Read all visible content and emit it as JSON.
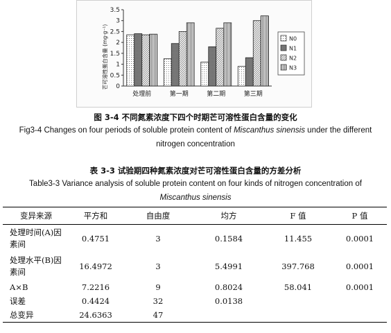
{
  "chart_data": {
    "type": "bar",
    "categories": [
      "处理前",
      "第一期",
      "第二期",
      "第三期"
    ],
    "series": [
      {
        "name": "N0",
        "values": [
          2.35,
          1.25,
          1.1,
          0.9
        ],
        "pattern": "dots"
      },
      {
        "name": "N1",
        "values": [
          2.4,
          1.95,
          1.8,
          1.3
        ],
        "pattern": "dark"
      },
      {
        "name": "N2",
        "values": [
          2.35,
          2.5,
          2.65,
          3.0
        ],
        "pattern": "hatch"
      },
      {
        "name": "N3",
        "values": [
          2.38,
          2.9,
          2.9,
          3.22
        ],
        "pattern": "vlines"
      }
    ],
    "ylabel": "芒可溶性蛋白含量 (mg·g⁻¹)",
    "yticks": [
      "0",
      "0.5",
      "1",
      "1.5",
      "2",
      "2.5",
      "3",
      "3.5"
    ],
    "ylim": [
      0,
      3.5
    ],
    "legend_position": "right",
    "grid": false
  },
  "figure_caption_cn": "图 3-4 不同氮素浓度下四个时期芒可溶性蛋白含量的变化",
  "figure_caption_en": {
    "line1_before": "Fig3-4 Changes on four periods of soluble protein content of ",
    "line1_species": "Miscanthus sinensis",
    "line1_after": " under the different",
    "line2": "nitrogen concentration"
  },
  "table_caption_cn": "表 3-3 试验期四种氮素浓度对芒可溶性蛋白含量的方差分析",
  "table_caption_en": {
    "line1": "Table3-3 Variance analysis of soluble protein content on four kinds of nitrogen concentration of",
    "line2": "Miscanthus sinensis"
  },
  "table": {
    "headers": [
      "变异来源",
      "平方和",
      "自由度",
      "均方",
      "F 值",
      "P 值"
    ],
    "rows": [
      {
        "source": "处理时间(A)因素间",
        "ss": "0.4751",
        "df": "3",
        "ms": "0.1584",
        "f": "11.455",
        "p": "0.0001"
      },
      {
        "source": "处理水平(B)因素间",
        "ss": "16.4972",
        "df": "3",
        "ms": "5.4991",
        "f": "397.768",
        "p": "0.0001"
      },
      {
        "source": "A×B",
        "ss": "7.2216",
        "df": "9",
        "ms": "0.8024",
        "f": "58.041",
        "p": "0.0001"
      },
      {
        "source": "误差",
        "ss": "0.4424",
        "df": "32",
        "ms": "0.0138",
        "f": "",
        "p": ""
      },
      {
        "source": "总变异",
        "ss": "24.6363",
        "df": "47",
        "ms": "",
        "f": "",
        "p": ""
      }
    ]
  }
}
